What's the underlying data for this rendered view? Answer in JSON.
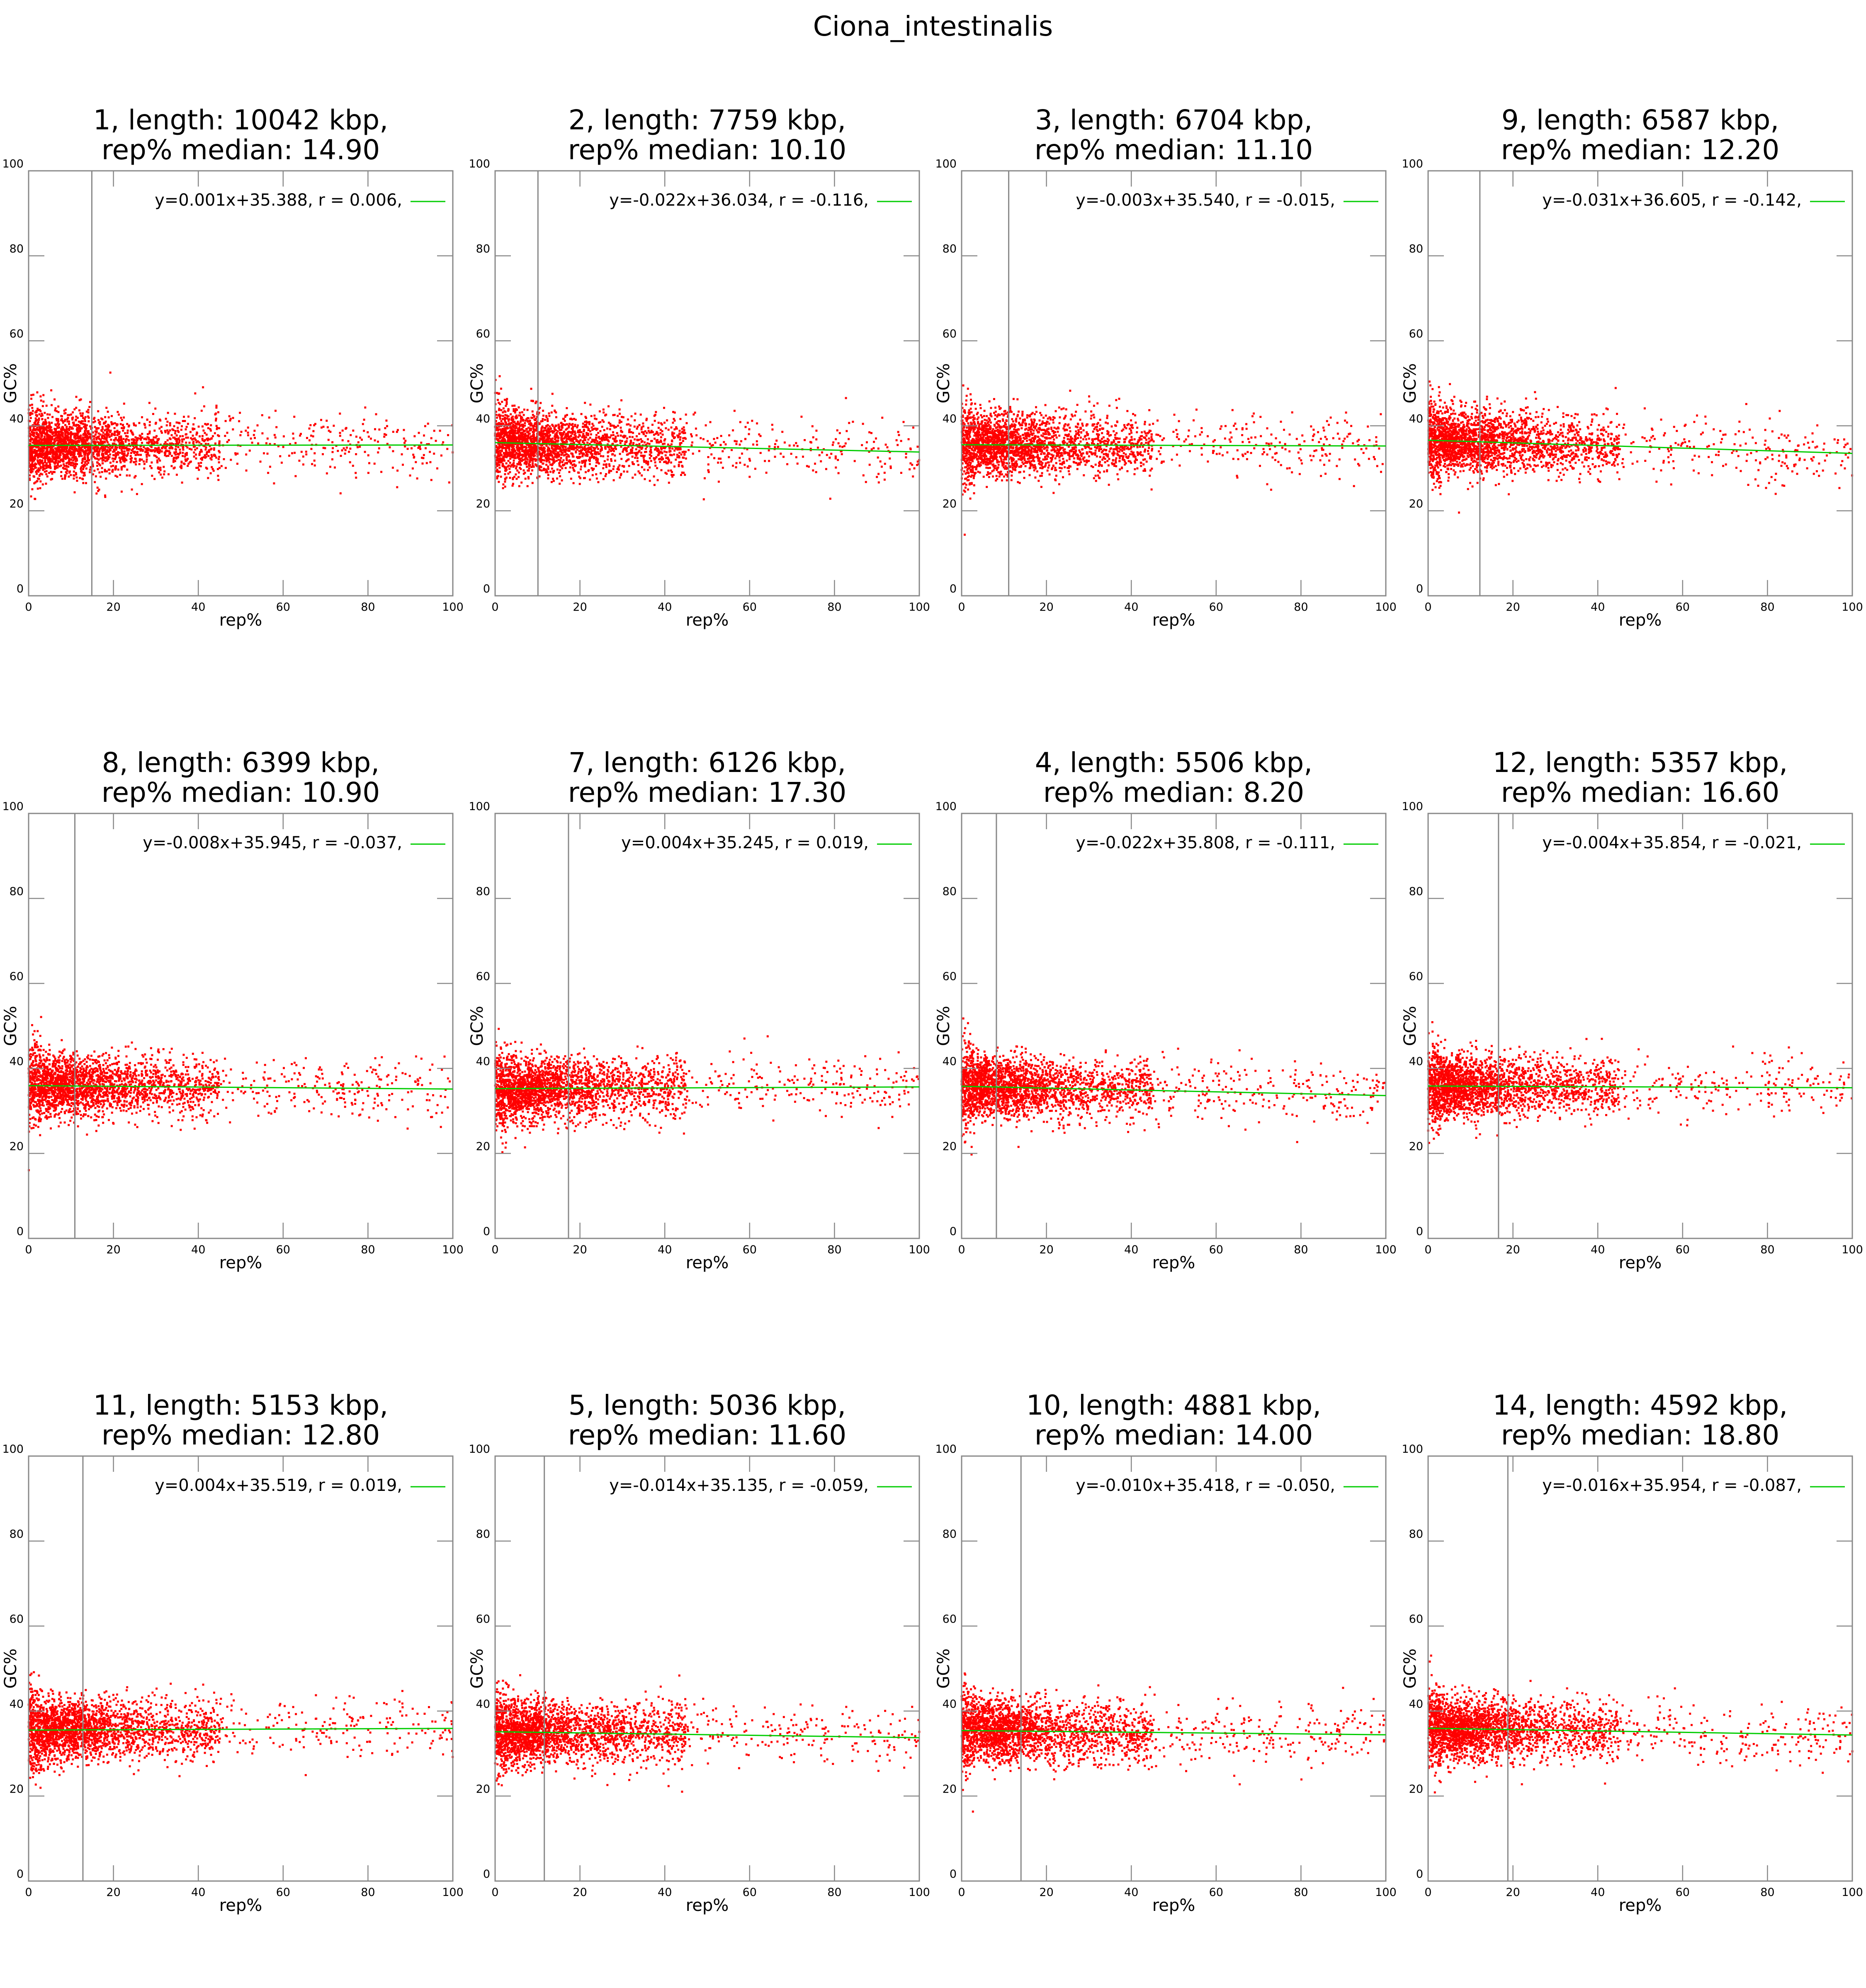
{
  "title": "Ciona_intestinalis",
  "colors": {
    "points": "#ff0000",
    "fit_line": "#00cc00",
    "median_line": "#888888",
    "axes": "#888888"
  },
  "chart_data": [
    {
      "type": "scatter",
      "title_line1": "1, length: 10042 kbp,",
      "title_line2": "rep% median: 14.90",
      "median": 14.9,
      "xlabel": "rep%",
      "ylabel": "GC%",
      "xlim": [
        0,
        100
      ],
      "ylim": [
        0,
        100
      ],
      "xticks": [
        0,
        20,
        40,
        60,
        80,
        100
      ],
      "yticks": [
        0,
        20,
        40,
        60,
        80,
        100
      ],
      "legend": "y=0.001x+35.388, r = 0.006,",
      "fit": {
        "slope": 0.001,
        "intercept": 35.388,
        "r": 0.006
      }
    },
    {
      "type": "scatter",
      "title_line1": "2, length: 7759 kbp,",
      "title_line2": "rep% median: 10.10",
      "median": 10.1,
      "xlabel": "rep%",
      "ylabel": "GC%",
      "xlim": [
        0,
        100
      ],
      "ylim": [
        0,
        100
      ],
      "xticks": [
        0,
        20,
        40,
        60,
        80,
        100
      ],
      "yticks": [
        0,
        20,
        40,
        60,
        80,
        100
      ],
      "legend": "y=-0.022x+36.034, r = -0.116,",
      "fit": {
        "slope": -0.022,
        "intercept": 36.034,
        "r": -0.116
      }
    },
    {
      "type": "scatter",
      "title_line1": "3, length: 6704 kbp,",
      "title_line2": "rep% median: 11.10",
      "median": 11.1,
      "xlabel": "rep%",
      "ylabel": "GC%",
      "xlim": [
        0,
        100
      ],
      "ylim": [
        0,
        100
      ],
      "xticks": [
        0,
        20,
        40,
        60,
        80,
        100
      ],
      "yticks": [
        0,
        20,
        40,
        60,
        80,
        100
      ],
      "legend": "y=-0.003x+35.540, r = -0.015,",
      "fit": {
        "slope": -0.003,
        "intercept": 35.54,
        "r": -0.015
      }
    },
    {
      "type": "scatter",
      "title_line1": "9, length: 6587 kbp,",
      "title_line2": "rep% median: 12.20",
      "median": 12.2,
      "xlabel": "rep%",
      "ylabel": "GC%",
      "xlim": [
        0,
        100
      ],
      "ylim": [
        0,
        100
      ],
      "xticks": [
        0,
        20,
        40,
        60,
        80,
        100
      ],
      "yticks": [
        0,
        20,
        40,
        60,
        80,
        100
      ],
      "legend": "y=-0.031x+36.605, r = -0.142,",
      "fit": {
        "slope": -0.031,
        "intercept": 36.605,
        "r": -0.142
      }
    },
    {
      "type": "scatter",
      "title_line1": "8, length: 6399 kbp,",
      "title_line2": "rep% median: 10.90",
      "median": 10.9,
      "xlabel": "rep%",
      "ylabel": "GC%",
      "xlim": [
        0,
        100
      ],
      "ylim": [
        0,
        100
      ],
      "xticks": [
        0,
        20,
        40,
        60,
        80,
        100
      ],
      "yticks": [
        0,
        20,
        40,
        60,
        80,
        100
      ],
      "legend": "y=-0.008x+35.945, r = -0.037,",
      "fit": {
        "slope": -0.008,
        "intercept": 35.945,
        "r": -0.037
      }
    },
    {
      "type": "scatter",
      "title_line1": "7, length: 6126 kbp,",
      "title_line2": "rep% median: 17.30",
      "median": 17.3,
      "xlabel": "rep%",
      "ylabel": "GC%",
      "xlim": [
        0,
        100
      ],
      "ylim": [
        0,
        100
      ],
      "xticks": [
        0,
        20,
        40,
        60,
        80,
        100
      ],
      "yticks": [
        0,
        20,
        40,
        60,
        80,
        100
      ],
      "legend": "y=0.004x+35.245, r = 0.019,",
      "fit": {
        "slope": 0.004,
        "intercept": 35.245,
        "r": 0.019
      }
    },
    {
      "type": "scatter",
      "title_line1": "4, length: 5506 kbp,",
      "title_line2": "rep% median: 8.20",
      "median": 8.2,
      "xlabel": "rep%",
      "ylabel": "GC%",
      "xlim": [
        0,
        100
      ],
      "ylim": [
        0,
        100
      ],
      "xticks": [
        0,
        20,
        40,
        60,
        80,
        100
      ],
      "yticks": [
        0,
        20,
        40,
        60,
        80,
        100
      ],
      "legend": "y=-0.022x+35.808, r = -0.111,",
      "fit": {
        "slope": -0.022,
        "intercept": 35.808,
        "r": -0.111
      }
    },
    {
      "type": "scatter",
      "title_line1": "12, length: 5357 kbp,",
      "title_line2": "rep% median: 16.60",
      "median": 16.6,
      "xlabel": "rep%",
      "ylabel": "GC%",
      "xlim": [
        0,
        100
      ],
      "ylim": [
        0,
        100
      ],
      "xticks": [
        0,
        20,
        40,
        60,
        80,
        100
      ],
      "yticks": [
        0,
        20,
        40,
        60,
        80,
        100
      ],
      "legend": "y=-0.004x+35.854, r = -0.021,",
      "fit": {
        "slope": -0.004,
        "intercept": 35.854,
        "r": -0.021
      }
    },
    {
      "type": "scatter",
      "title_line1": "11, length: 5153 kbp,",
      "title_line2": "rep% median: 12.80",
      "median": 12.8,
      "xlabel": "rep%",
      "ylabel": "GC%",
      "xlim": [
        0,
        100
      ],
      "ylim": [
        0,
        100
      ],
      "xticks": [
        0,
        20,
        40,
        60,
        80,
        100
      ],
      "yticks": [
        0,
        20,
        40,
        60,
        80,
        100
      ],
      "legend": "y=0.004x+35.519, r = 0.019,",
      "fit": {
        "slope": 0.004,
        "intercept": 35.519,
        "r": 0.019
      }
    },
    {
      "type": "scatter",
      "title_line1": "5, length: 5036 kbp,",
      "title_line2": "rep% median: 11.60",
      "median": 11.6,
      "xlabel": "rep%",
      "ylabel": "GC%",
      "xlim": [
        0,
        100
      ],
      "ylim": [
        0,
        100
      ],
      "xticks": [
        0,
        20,
        40,
        60,
        80,
        100
      ],
      "yticks": [
        0,
        20,
        40,
        60,
        80,
        100
      ],
      "legend": "y=-0.014x+35.135, r = -0.059,",
      "fit": {
        "slope": -0.014,
        "intercept": 35.135,
        "r": -0.059
      }
    },
    {
      "type": "scatter",
      "title_line1": "10, length: 4881 kbp,",
      "title_line2": "rep% median: 14.00",
      "median": 14.0,
      "xlabel": "rep%",
      "ylabel": "GC%",
      "xlim": [
        0,
        100
      ],
      "ylim": [
        0,
        100
      ],
      "xticks": [
        0,
        20,
        40,
        60,
        80,
        100
      ],
      "yticks": [
        0,
        20,
        40,
        60,
        80,
        100
      ],
      "legend": "y=-0.010x+35.418, r = -0.050,",
      "fit": {
        "slope": -0.01,
        "intercept": 35.418,
        "r": -0.05
      }
    },
    {
      "type": "scatter",
      "title_line1": "14, length: 4592 kbp,",
      "title_line2": "rep% median: 18.80",
      "median": 18.8,
      "xlabel": "rep%",
      "ylabel": "GC%",
      "xlim": [
        0,
        100
      ],
      "ylim": [
        0,
        100
      ],
      "xticks": [
        0,
        20,
        40,
        60,
        80,
        100
      ],
      "yticks": [
        0,
        20,
        40,
        60,
        80,
        100
      ],
      "legend": "y=-0.016x+35.954, r = -0.087,",
      "fit": {
        "slope": -0.016,
        "intercept": 35.954,
        "r": -0.087
      }
    }
  ]
}
